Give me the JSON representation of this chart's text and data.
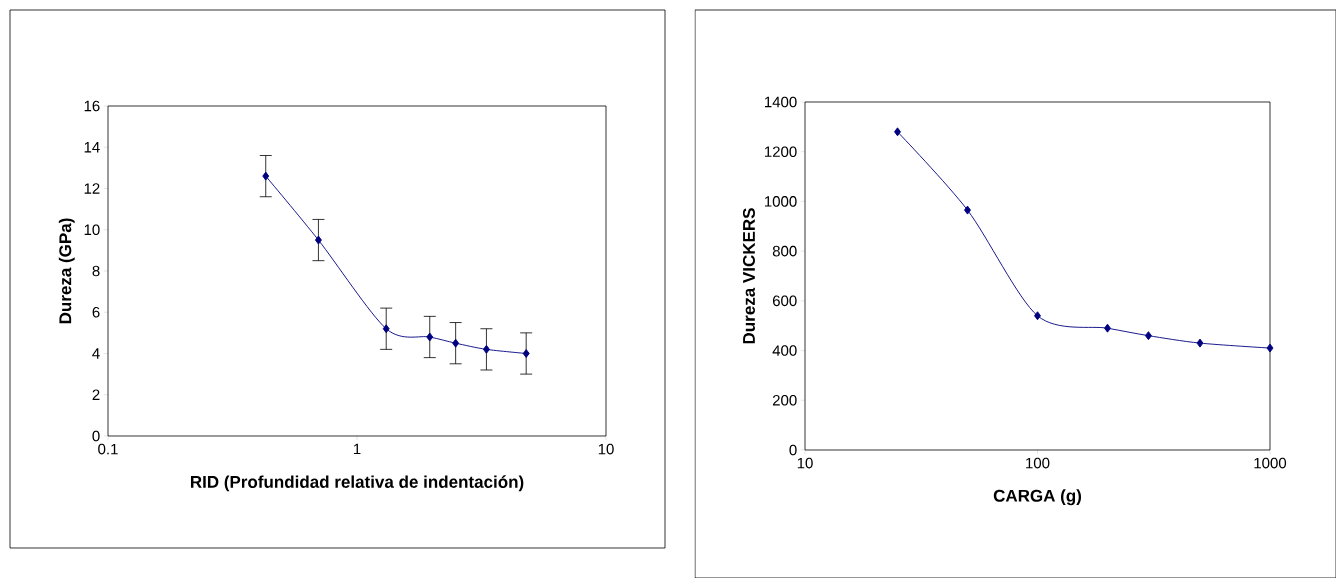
{
  "chart_data": [
    {
      "type": "line",
      "xlabel": "RID (Profundidad relativa de indentación)",
      "ylabel": "Dureza  (GPa)",
      "log": "x",
      "marker": "diamond",
      "color": "#000080",
      "x": [
        0.43,
        0.7,
        1.31,
        1.96,
        2.49,
        3.31,
        4.78
      ],
      "values": [
        12.6,
        9.5,
        5.2,
        4.8,
        4.5,
        4.2,
        4.0
      ],
      "errors": [
        1,
        1,
        1,
        1,
        1,
        1,
        1
      ],
      "xlim": [
        0.1,
        10
      ],
      "xticks": [
        0.1,
        1,
        10
      ],
      "ylim": [
        0,
        16
      ],
      "yticks": [
        0,
        2,
        4,
        6,
        8,
        10,
        12,
        14,
        16
      ]
    },
    {
      "type": "line",
      "xlabel": "CARGA (g)",
      "ylabel": "Dureza  VICKERS",
      "log": "x",
      "marker": "diamond",
      "color": "#000080",
      "x": [
        25,
        50,
        100,
        200,
        300,
        500,
        1000
      ],
      "values": [
        1280,
        965,
        540,
        490,
        460,
        430,
        410
      ],
      "xlim": [
        10,
        1000
      ],
      "xticks": [
        10,
        100,
        1000
      ],
      "ylim": [
        0,
        1400
      ],
      "yticks": [
        0,
        200,
        400,
        600,
        800,
        1000,
        1200,
        1400
      ]
    }
  ]
}
